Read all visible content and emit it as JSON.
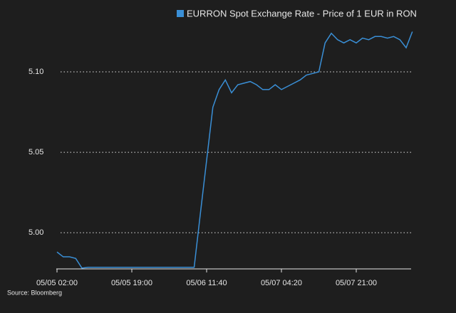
{
  "chart_data": {
    "type": "line",
    "series": [
      {
        "name": "EURRON Spot Exchange Rate - Price of 1 EUR in RON",
        "color": "#3a8fd6",
        "values": [
          4.988,
          4.985,
          4.985,
          4.984,
          4.978,
          4.9785,
          4.9785,
          4.9785,
          4.9785,
          4.9785,
          4.9785,
          4.9785,
          4.9785,
          4.9785,
          4.9785,
          4.9785,
          4.9785,
          4.9785,
          4.9785,
          4.9785,
          4.9785,
          4.9785,
          4.9785,
          5.012,
          5.045,
          5.078,
          5.089,
          5.095,
          5.087,
          5.092,
          5.093,
          5.094,
          5.092,
          5.089,
          5.089,
          5.092,
          5.089,
          5.091,
          5.093,
          5.095,
          5.098,
          5.099,
          5.1,
          5.118,
          5.124,
          5.12,
          5.118,
          5.12,
          5.118,
          5.121,
          5.12,
          5.122,
          5.122,
          5.121,
          5.122,
          5.12,
          5.115,
          5.125
        ]
      }
    ],
    "categories": [
      "05/05 02:00",
      null,
      null,
      null,
      null,
      null,
      null,
      null,
      null,
      null,
      null,
      null,
      "05/05 19:00",
      null,
      null,
      null,
      null,
      null,
      null,
      null,
      null,
      null,
      null,
      null,
      "05/06 11:40",
      null,
      null,
      null,
      null,
      null,
      null,
      null,
      null,
      null,
      null,
      null,
      "05/07 04:20",
      null,
      null,
      null,
      null,
      null,
      null,
      null,
      null,
      null,
      null,
      null,
      "05/07 21:00",
      null,
      null,
      null,
      null,
      null,
      null,
      null,
      null,
      null
    ],
    "ylim": [
      4.9775,
      5.127
    ],
    "yticks": [
      {
        "value": 5.0,
        "label": "5.00"
      },
      {
        "value": 5.05,
        "label": "5.05"
      },
      {
        "value": 5.1,
        "label": "5.10"
      }
    ],
    "grid": true,
    "source": "Source: Bloomberg"
  }
}
